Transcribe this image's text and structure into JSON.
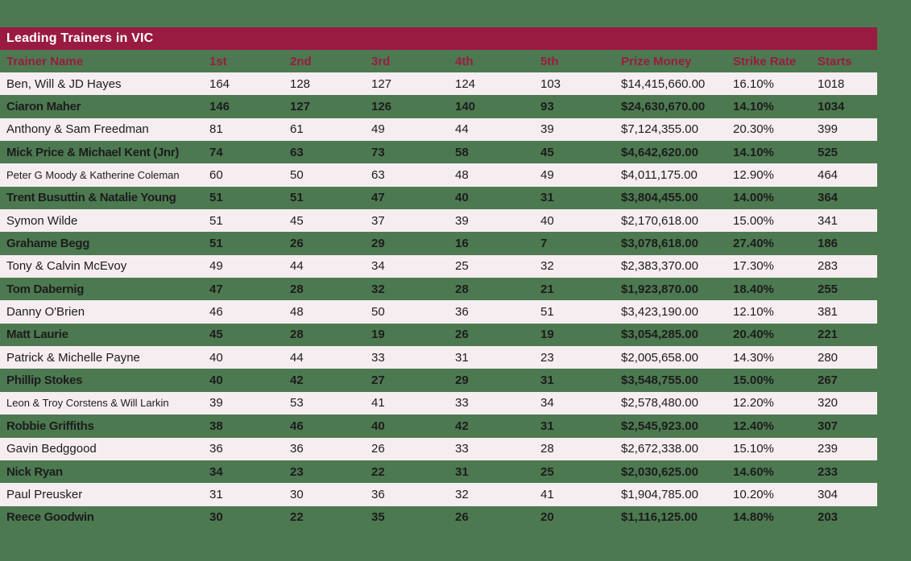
{
  "title": "Leading Trainers in VIC",
  "colors": {
    "background": "#4d7951",
    "accent": "#9a1b41",
    "header_text": "#9a1b41",
    "row_pink": "#f6edf1",
    "text": "#1c1c1c",
    "title_text": "#ffffff"
  },
  "table": {
    "columns": [
      {
        "key": "name",
        "label": "Trainer Name"
      },
      {
        "key": "first",
        "label": "1st"
      },
      {
        "key": "second",
        "label": "2nd"
      },
      {
        "key": "third",
        "label": "3rd"
      },
      {
        "key": "fourth",
        "label": "4th"
      },
      {
        "key": "fifth",
        "label": "5th"
      },
      {
        "key": "prize",
        "label": "Prize Money"
      },
      {
        "key": "strike",
        "label": "Strike Rate"
      },
      {
        "key": "starts",
        "label": "Starts"
      }
    ],
    "rows": [
      {
        "name": "Ben, Will & JD Hayes",
        "first": "164",
        "second": "128",
        "third": "127",
        "fourth": "124",
        "fifth": "103",
        "prize": "$14,415,660.00",
        "strike": "16.10%",
        "starts": "1018"
      },
      {
        "name": "Ciaron Maher",
        "first": "146",
        "second": "127",
        "third": "126",
        "fourth": "140",
        "fifth": "93",
        "prize": "$24,630,670.00",
        "strike": "14.10%",
        "starts": "1034"
      },
      {
        "name": "Anthony & Sam Freedman",
        "first": "81",
        "second": "61",
        "third": "49",
        "fourth": "44",
        "fifth": "39",
        "prize": "$7,124,355.00",
        "strike": "20.30%",
        "starts": "399"
      },
      {
        "name": "Mick Price & Michael Kent (Jnr)",
        "first": "74",
        "second": "63",
        "third": "73",
        "fourth": "58",
        "fifth": "45",
        "prize": "$4,642,620.00",
        "strike": "14.10%",
        "starts": "525"
      },
      {
        "name": "Peter G Moody & Katherine Coleman",
        "name_small": true,
        "first": "60",
        "second": "50",
        "third": "63",
        "fourth": "48",
        "fifth": "49",
        "prize": "$4,011,175.00",
        "strike": "12.90%",
        "starts": "464"
      },
      {
        "name": "Trent Busuttin & Natalie Young",
        "first": "51",
        "second": "51",
        "third": "47",
        "fourth": "40",
        "fifth": "31",
        "prize": "$3,804,455.00",
        "strike": "14.00%",
        "starts": "364"
      },
      {
        "name": "Symon Wilde",
        "first": "51",
        "second": "45",
        "third": "37",
        "fourth": "39",
        "fifth": "40",
        "prize": "$2,170,618.00",
        "strike": "15.00%",
        "starts": "341"
      },
      {
        "name": "Grahame Begg",
        "first": "51",
        "second": "26",
        "third": "29",
        "fourth": "16",
        "fifth": "7",
        "prize": "$3,078,618.00",
        "strike": "27.40%",
        "starts": "186"
      },
      {
        "name": "Tony & Calvin McEvoy",
        "first": "49",
        "second": "44",
        "third": "34",
        "fourth": "25",
        "fifth": "32",
        "prize": "$2,383,370.00",
        "strike": "17.30%",
        "starts": "283"
      },
      {
        "name": "Tom Dabernig",
        "first": "47",
        "second": "28",
        "third": "32",
        "fourth": "28",
        "fifth": "21",
        "prize": "$1,923,870.00",
        "strike": "18.40%",
        "starts": "255"
      },
      {
        "name": "Danny O'Brien",
        "first": "46",
        "second": "48",
        "third": "50",
        "fourth": "36",
        "fifth": "51",
        "prize": "$3,423,190.00",
        "strike": "12.10%",
        "starts": "381"
      },
      {
        "name": "Matt Laurie",
        "first": "45",
        "second": "28",
        "third": "19",
        "fourth": "26",
        "fifth": "19",
        "prize": "$3,054,285.00",
        "strike": "20.40%",
        "starts": "221"
      },
      {
        "name": "Patrick & Michelle Payne",
        "first": "40",
        "second": "44",
        "third": "33",
        "fourth": "31",
        "fifth": "23",
        "prize": "$2,005,658.00",
        "strike": "14.30%",
        "starts": "280"
      },
      {
        "name": "Phillip Stokes",
        "first": "40",
        "second": "42",
        "third": "27",
        "fourth": "29",
        "fifth": "31",
        "prize": "$3,548,755.00",
        "strike": "15.00%",
        "starts": "267"
      },
      {
        "name": "Leon & Troy Corstens & Will Larkin",
        "name_small": true,
        "first": "39",
        "second": "53",
        "third": "41",
        "fourth": "33",
        "fifth": "34",
        "prize": "$2,578,480.00",
        "strike": "12.20%",
        "starts": "320"
      },
      {
        "name": "Robbie Griffiths",
        "first": "38",
        "second": "46",
        "third": "40",
        "fourth": "42",
        "fifth": "31",
        "prize": "$2,545,923.00",
        "strike": "12.40%",
        "starts": "307"
      },
      {
        "name": "Gavin Bedggood",
        "first": "36",
        "second": "36",
        "third": "26",
        "fourth": "33",
        "fifth": "28",
        "prize": "$2,672,338.00",
        "strike": "15.10%",
        "starts": "239"
      },
      {
        "name": "Nick Ryan",
        "first": "34",
        "second": "23",
        "third": "22",
        "fourth": "31",
        "fifth": "25",
        "prize": "$2,030,625.00",
        "strike": "14.60%",
        "starts": "233"
      },
      {
        "name": "Paul Preusker",
        "first": "31",
        "second": "30",
        "third": "36",
        "fourth": "32",
        "fifth": "41",
        "prize": "$1,904,785.00",
        "strike": "10.20%",
        "starts": "304"
      },
      {
        "name": "Reece Goodwin",
        "first": "30",
        "second": "22",
        "third": "35",
        "fourth": "26",
        "fifth": "20",
        "prize": "$1,116,125.00",
        "strike": "14.80%",
        "starts": "203"
      }
    ]
  }
}
